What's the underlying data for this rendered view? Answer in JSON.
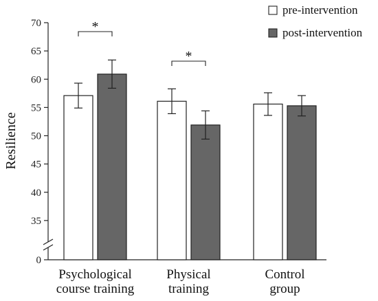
{
  "chart_data": {
    "type": "bar",
    "title": "",
    "xlabel": "",
    "ylabel": "Resilience",
    "ylim": [
      30,
      70
    ],
    "axis_break": true,
    "y_ticks": [
      "35",
      "40",
      "45",
      "50",
      "55",
      "60",
      "65",
      "70"
    ],
    "y_origin_label": "0",
    "categories": [
      [
        "Psychological",
        "course training"
      ],
      [
        "Physical",
        "training"
      ],
      [
        "Control",
        "group"
      ]
    ],
    "series": [
      {
        "name": "pre-intervention",
        "color": "#ffffff",
        "values": [
          57.1,
          56.1,
          55.6
        ],
        "error": [
          2.2,
          2.2,
          2.0
        ]
      },
      {
        "name": "post-intervention",
        "color": "#666666",
        "values": [
          60.9,
          51.9,
          55.3
        ],
        "error": [
          2.5,
          2.5,
          1.8
        ]
      }
    ],
    "significance": [
      {
        "category_index": 0,
        "label": "*"
      },
      {
        "category_index": 1,
        "label": "*"
      }
    ],
    "grid": false,
    "legend_position": "top-right"
  }
}
